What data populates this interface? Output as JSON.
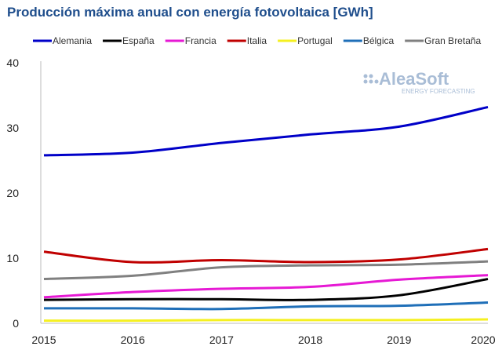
{
  "chart_data": {
    "type": "line",
    "title": "Producción máxima anual con energía fotovoltaica [GWh]",
    "x": [
      "2015",
      "2016",
      "2017",
      "2018",
      "2019",
      "2020"
    ],
    "ylim": [
      0,
      40
    ],
    "yticks": [
      0,
      10,
      20,
      30,
      40
    ],
    "grid": false,
    "legend": "top",
    "series": [
      {
        "name": "Alemania",
        "color": "#0000c8",
        "values": [
          25.8,
          26.2,
          27.7,
          29.0,
          30.2,
          33.2
        ]
      },
      {
        "name": "España",
        "color": "#000000",
        "values": [
          3.6,
          3.7,
          3.7,
          3.6,
          4.3,
          6.8
        ]
      },
      {
        "name": "Francia",
        "color": "#e619d4",
        "values": [
          4.0,
          4.8,
          5.3,
          5.6,
          6.7,
          7.4
        ]
      },
      {
        "name": "Italia",
        "color": "#c00000",
        "values": [
          11.0,
          9.4,
          9.7,
          9.4,
          9.8,
          11.4
        ]
      },
      {
        "name": "Portugal",
        "color": "#f5f020",
        "values": [
          0.4,
          0.4,
          0.5,
          0.5,
          0.5,
          0.6
        ]
      },
      {
        "name": "Bélgica",
        "color": "#1f6fb8",
        "values": [
          2.3,
          2.3,
          2.2,
          2.6,
          2.7,
          3.2
        ]
      },
      {
        "name": "Gran Bretaña",
        "color": "#808080",
        "values": [
          6.8,
          7.3,
          8.6,
          8.9,
          9.0,
          9.5
        ]
      }
    ]
  },
  "logo": {
    "name": "AleaSoft",
    "tagline": "ENERGY FORECASTING"
  }
}
